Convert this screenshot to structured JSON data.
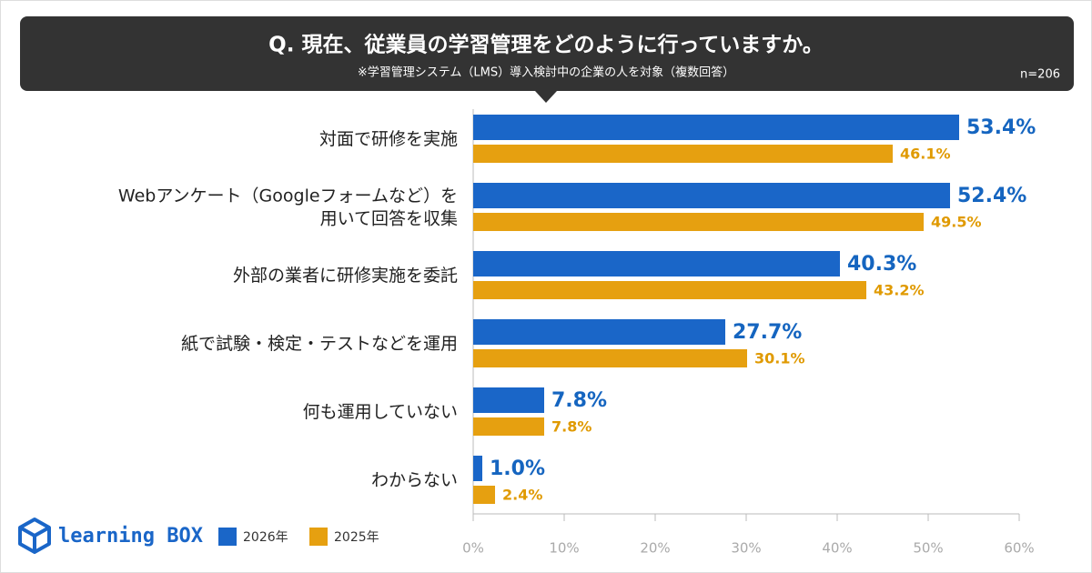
{
  "chart_data": {
    "type": "bar",
    "title": "Q. 現在、従業員の学習管理をどのように行っていますか。",
    "subtitle": "※学習管理システム（LMS）導入検討中の企業の人を対象（複数回答）",
    "note": "n=206",
    "categories": [
      [
        "対面で研修を実施"
      ],
      [
        "Webアンケート（Googleフォームなど）を",
        "用いて回答を収集"
      ],
      [
        "外部の業者に研修実施を委託"
      ],
      [
        "紙で試験・検定・テストなどを運用"
      ],
      [
        "何も運用していない"
      ],
      [
        "わからない"
      ]
    ],
    "series": [
      {
        "name": "2026年",
        "color": "#1a66c8",
        "values": [
          53.4,
          52.4,
          40.3,
          27.7,
          7.8,
          1.0
        ],
        "value_labels": [
          "53.4%",
          "52.4%",
          "40.3%",
          "27.7%",
          "7.8%",
          "1.0%"
        ]
      },
      {
        "name": "2025年",
        "color": "#e6a010",
        "values": [
          46.1,
          49.5,
          43.2,
          30.1,
          7.8,
          2.4
        ],
        "value_labels": [
          "46.1%",
          "49.5%",
          "43.2%",
          "30.1%",
          "7.8%",
          "2.4%"
        ]
      }
    ],
    "xlim": [
      0,
      60
    ],
    "xticks": [
      {
        "value": 0,
        "label": "0%"
      },
      {
        "value": 10,
        "label": "10%"
      },
      {
        "value": 20,
        "label": "20%"
      },
      {
        "value": 30,
        "label": "30%"
      },
      {
        "value": 40,
        "label": "40%"
      },
      {
        "value": 50,
        "label": "50%"
      },
      {
        "value": 60,
        "label": "60%"
      }
    ]
  },
  "logo": "learning BOX"
}
